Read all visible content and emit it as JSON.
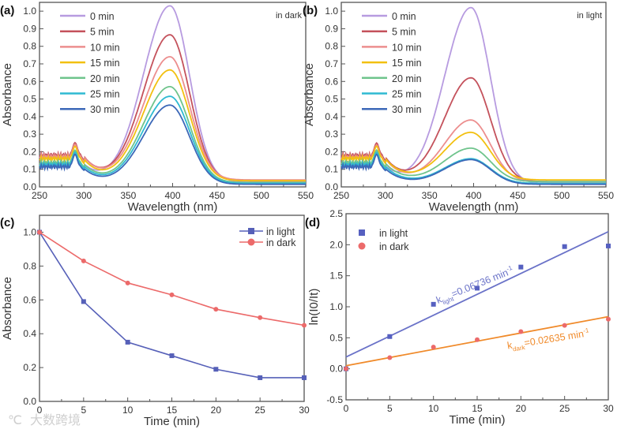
{
  "watermark": "大数跨境",
  "chart_data": [
    {
      "panel_label": "(a)",
      "type": "line",
      "annotation": "in dark",
      "xlabel": "Wavelength (nm)",
      "ylabel": "Absorbance",
      "xlim": [
        250,
        550
      ],
      "ylim": [
        0,
        1.05
      ],
      "xticks": [
        250,
        300,
        350,
        400,
        450,
        500,
        550
      ],
      "yticks": [
        0.0,
        0.1,
        0.2,
        0.3,
        0.4,
        0.5,
        0.6,
        0.7,
        0.8,
        0.9,
        1.0
      ],
      "peak_wavelength": 397,
      "legend_position": "top-left",
      "series": [
        {
          "name": "0 min",
          "peak_absorbance": 1.0,
          "uv_absorbance": 0.12,
          "baseline": 0.03,
          "color": "#b79be0"
        },
        {
          "name": "5 min",
          "peak_absorbance": 0.83,
          "uv_absorbance": 0.17,
          "baseline": 0.035,
          "color": "#c4525c"
        },
        {
          "name": "10 min",
          "peak_absorbance": 0.7,
          "uv_absorbance": 0.16,
          "baseline": 0.04,
          "color": "#ec8e8e"
        },
        {
          "name": "15 min",
          "peak_absorbance": 0.63,
          "uv_absorbance": 0.15,
          "baseline": 0.035,
          "color": "#f2c010"
        },
        {
          "name": "20 min",
          "peak_absorbance": 0.545,
          "uv_absorbance": 0.13,
          "baseline": 0.025,
          "color": "#6fc48c"
        },
        {
          "name": "25 min",
          "peak_absorbance": 0.495,
          "uv_absorbance": 0.12,
          "baseline": 0.02,
          "color": "#2fbad2"
        },
        {
          "name": "30 min",
          "peak_absorbance": 0.45,
          "uv_absorbance": 0.11,
          "baseline": 0.015,
          "color": "#3c68b8"
        }
      ]
    },
    {
      "panel_label": "(b)",
      "type": "line",
      "annotation": "in light",
      "xlabel": "Wavelength (nm)",
      "ylabel": "Absorbance",
      "xlim": [
        250,
        550
      ],
      "ylim": [
        0,
        1.05
      ],
      "xticks": [
        250,
        300,
        350,
        400,
        450,
        500,
        550
      ],
      "yticks": [
        0.0,
        0.1,
        0.2,
        0.3,
        0.4,
        0.5,
        0.6,
        0.7,
        0.8,
        0.9,
        1.0
      ],
      "peak_wavelength": 397,
      "legend_position": "top-left",
      "series": [
        {
          "name": "0 min",
          "peak_absorbance": 1.0,
          "uv_absorbance": 0.12,
          "baseline": 0.02,
          "color": "#b79be0"
        },
        {
          "name": "5 min",
          "peak_absorbance": 0.59,
          "uv_absorbance": 0.17,
          "baseline": 0.03,
          "color": "#c4525c"
        },
        {
          "name": "10 min",
          "peak_absorbance": 0.35,
          "uv_absorbance": 0.16,
          "baseline": 0.03,
          "color": "#ec8e8e"
        },
        {
          "name": "15 min",
          "peak_absorbance": 0.27,
          "uv_absorbance": 0.15,
          "baseline": 0.04,
          "color": "#f2c010"
        },
        {
          "name": "20 min",
          "peak_absorbance": 0.19,
          "uv_absorbance": 0.13,
          "baseline": 0.03,
          "color": "#6fc48c"
        },
        {
          "name": "25 min",
          "peak_absorbance": 0.14,
          "uv_absorbance": 0.12,
          "baseline": 0.02,
          "color": "#2fbad2"
        },
        {
          "name": "30 min",
          "peak_absorbance": 0.14,
          "uv_absorbance": 0.11,
          "baseline": 0.015,
          "color": "#3c68b8"
        }
      ]
    },
    {
      "panel_label": "(c)",
      "type": "line",
      "xlabel": "Time (min)",
      "ylabel": "Absorbance",
      "xlim": [
        0,
        30
      ],
      "ylim": [
        0,
        1.1
      ],
      "xticks": [
        0,
        5,
        10,
        15,
        20,
        25,
        30
      ],
      "yticks": [
        0.0,
        0.2,
        0.4,
        0.6,
        0.8,
        1.0
      ],
      "legend_position": "top-right",
      "x": [
        0,
        5,
        10,
        15,
        20,
        25,
        30
      ],
      "series": [
        {
          "name": "in light",
          "marker": "square",
          "values": [
            1.0,
            0.59,
            0.35,
            0.27,
            0.19,
            0.14,
            0.14
          ],
          "color": "#5660b8"
        },
        {
          "name": "in dark",
          "marker": "circle",
          "values": [
            1.0,
            0.83,
            0.7,
            0.63,
            0.545,
            0.495,
            0.45
          ],
          "color": "#ec6a6a"
        }
      ]
    },
    {
      "panel_label": "(d)",
      "type": "scatter",
      "xlabel": "Time (min)",
      "ylabel": "ln(I0/It)",
      "ylabel_parts": {
        "prefix": "ln(I",
        "sub1": "0",
        "mid": "/I",
        "sub2": "t",
        "suffix": ")"
      },
      "xlim": [
        0,
        30
      ],
      "ylim": [
        -0.5,
        2.5
      ],
      "xticks": [
        0,
        5,
        10,
        15,
        20,
        25,
        30
      ],
      "yticks": [
        -0.5,
        0.0,
        0.5,
        1.0,
        1.5,
        2.0,
        2.5
      ],
      "legend_position": "top-left",
      "x": [
        0,
        5,
        10,
        15,
        20,
        25,
        30
      ],
      "series": [
        {
          "name": "in light",
          "marker": "square",
          "values": [
            0.0,
            0.52,
            1.04,
            1.3,
            1.64,
            1.97,
            1.98
          ],
          "color": "#5660c0",
          "fit_color": "#6a72c8",
          "fit_intercept": 0.19,
          "fit_slope": 0.06736,
          "annotation": {
            "k": "k",
            "sub": "light",
            "rest": "=0.06736 min",
            "sup": "-1"
          }
        },
        {
          "name": "in dark",
          "marker": "circle",
          "values": [
            0.0,
            0.18,
            0.35,
            0.47,
            0.6,
            0.7,
            0.8
          ],
          "color": "#ec6a6a",
          "fit_color": "#f08a2a",
          "fit_intercept": 0.05,
          "fit_slope": 0.02635,
          "annotation": {
            "k": "k",
            "sub": "dark",
            "rest": "=0.02635 min",
            "sup": "-1"
          }
        }
      ]
    }
  ]
}
